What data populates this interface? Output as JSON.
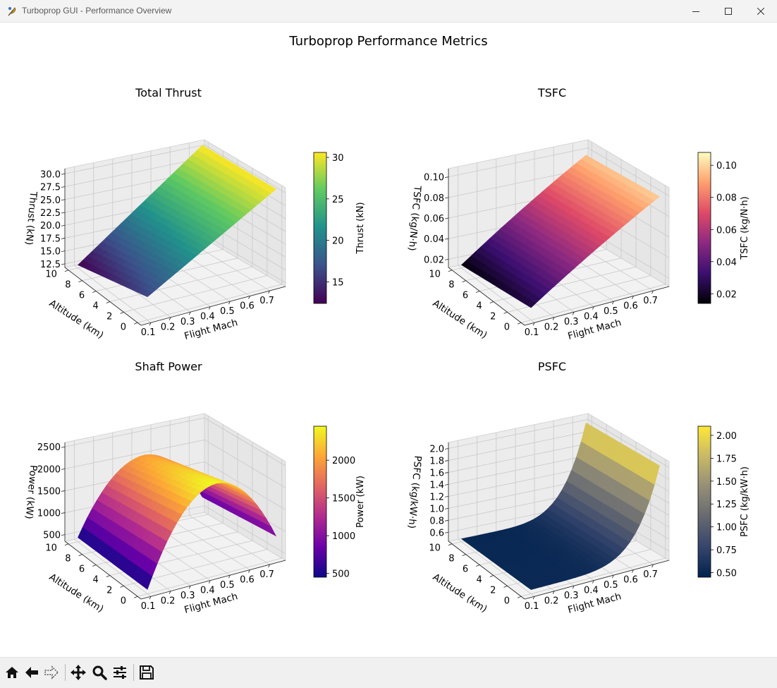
{
  "window": {
    "title": "Turboprop GUI - Performance Overview",
    "controls": {
      "minimize": "minimize-icon",
      "maximize": "maximize-icon",
      "close": "close-icon"
    }
  },
  "figure": {
    "suptitle": "Turboprop Performance Metrics"
  },
  "toolbar": {
    "icons": [
      "home-icon",
      "back-icon",
      "forward-icon",
      "pan-icon",
      "zoom-icon",
      "configure-subplots-icon",
      "save-icon"
    ]
  },
  "chart_data": [
    {
      "type": "surface3d",
      "title": "Total Thrust",
      "xlabel": "Flight Mach",
      "ylabel": "Altitude (km)",
      "zlabel": "Thrust (kN)",
      "x_ticks": [
        "0.1",
        "0.2",
        "0.3",
        "0.4",
        "0.5",
        "0.6",
        "0.7"
      ],
      "y_ticks": [
        "0",
        "2",
        "4",
        "6",
        "8",
        "10"
      ],
      "z_ticks": [
        "12.5",
        "15.0",
        "17.5",
        "20.0",
        "22.5",
        "25.0",
        "27.5",
        "30.0"
      ],
      "zlim": [
        11.8,
        31.0
      ],
      "colormap": "viridis",
      "colorbar": {
        "label": "Thrust (kN)",
        "ticks": [
          "15",
          "20",
          "25",
          "30"
        ],
        "tick_values": [
          15,
          20,
          25,
          30
        ],
        "range": [
          12.4,
          30.6
        ]
      },
      "corner_values": [
        {
          "mach": 0.1,
          "altitude_km": 10,
          "value": 12.4
        },
        {
          "mach": 0.1,
          "altitude_km": 0,
          "value": 15.0
        },
        {
          "mach": 0.75,
          "altitude_km": 10,
          "value": 30.6
        }
      ]
    },
    {
      "type": "surface3d",
      "title": "TSFC",
      "xlabel": "Flight Mach",
      "ylabel": "Altitude (km)",
      "zlabel": "TSFC (kg/N·h)",
      "x_ticks": [
        "0.1",
        "0.2",
        "0.3",
        "0.4",
        "0.5",
        "0.6",
        "0.7"
      ],
      "y_ticks": [
        "0",
        "2",
        "4",
        "6",
        "8",
        "10"
      ],
      "z_ticks": [
        "0.02",
        "0.04",
        "0.06",
        "0.08",
        "0.10"
      ],
      "zlim": [
        0.012,
        0.108
      ],
      "colormap": "magma",
      "colorbar": {
        "label": "TSFC (kg/N·h)",
        "ticks": [
          "0.02",
          "0.04",
          "0.06",
          "0.08",
          "0.10"
        ],
        "tick_values": [
          0.02,
          0.04,
          0.06,
          0.08,
          0.1
        ],
        "range": [
          0.014,
          0.108
        ]
      },
      "corner_values": [
        {
          "mach": 0.1,
          "altitude_km": 10,
          "value": 0.015
        },
        {
          "mach": 0.75,
          "altitude_km": 10,
          "value": 0.105
        }
      ]
    },
    {
      "type": "surface3d",
      "title": "Shaft Power",
      "xlabel": "Flight Mach",
      "ylabel": "Altitude (km)",
      "zlabel": "Power (kW)",
      "x_ticks": [
        "0.1",
        "0.2",
        "0.3",
        "0.4",
        "0.5",
        "0.6",
        "0.7"
      ],
      "y_ticks": [
        "0",
        "2",
        "4",
        "6",
        "8",
        "10"
      ],
      "z_ticks": [
        "500",
        "1000",
        "1500",
        "2000",
        "2500"
      ],
      "zlim": [
        350,
        2600
      ],
      "colormap": "plasma",
      "colorbar": {
        "label": "Power (kW)",
        "ticks": [
          "500",
          "1000",
          "1500",
          "2000"
        ],
        "tick_values": [
          500,
          1000,
          1500,
          2000
        ],
        "range": [
          450,
          2450
        ]
      },
      "corner_values": [
        {
          "mach": 0.1,
          "altitude_km": 10,
          "value": 450
        },
        {
          "mach": 0.45,
          "altitude_km": 10,
          "value": 2450
        },
        {
          "mach": 0.75,
          "altitude_km": 10,
          "value": 1600
        }
      ]
    },
    {
      "type": "surface3d",
      "title": "PSFC",
      "xlabel": "Flight Mach",
      "ylabel": "Altitude (km)",
      "zlabel": "PSFC (kg/kW·h)",
      "x_ticks": [
        "0.1",
        "0.2",
        "0.3",
        "0.4",
        "0.5",
        "0.6",
        "0.7"
      ],
      "y_ticks": [
        "0",
        "2",
        "4",
        "6",
        "8",
        "10"
      ],
      "z_ticks": [
        "0.6",
        "0.8",
        "1.0",
        "1.2",
        "1.4",
        "1.6",
        "1.8",
        "2.0"
      ],
      "zlim": [
        0.45,
        2.1
      ],
      "colormap": "cividis",
      "colorbar": {
        "label": "PSFC (kg/kW·h)",
        "ticks": [
          "0.50",
          "0.75",
          "1.00",
          "1.25",
          "1.50",
          "1.75",
          "2.00"
        ],
        "tick_values": [
          0.5,
          0.75,
          1.0,
          1.25,
          1.5,
          1.75,
          2.0
        ],
        "range": [
          0.45,
          2.1
        ]
      },
      "corner_values": [
        {
          "mach": 0.1,
          "altitude_km": 10,
          "value": 0.5
        },
        {
          "mach": 0.75,
          "altitude_km": 10,
          "value": 2.0
        }
      ]
    }
  ]
}
